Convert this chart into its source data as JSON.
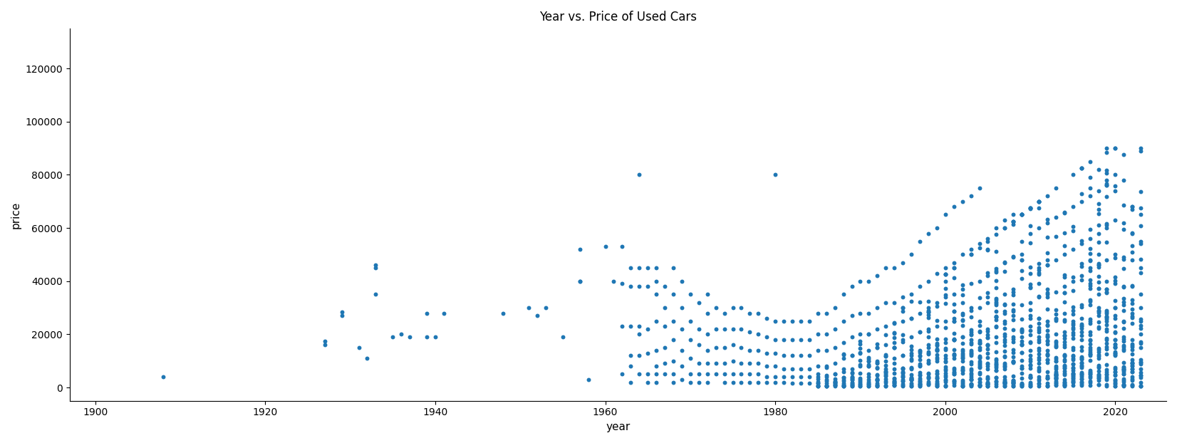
{
  "title": "Year vs. Price of Used Cars",
  "xlabel": "year",
  "ylabel": "price",
  "dot_color": "#1f77b4",
  "dot_size": 18,
  "dot_alpha": 1.0,
  "xlim": [
    1897,
    2026
  ],
  "ylim": [
    -5000,
    135000
  ],
  "points": [
    [
      1908,
      4000
    ],
    [
      1927,
      16000
    ],
    [
      1927,
      17500
    ],
    [
      1929,
      27000
    ],
    [
      1929,
      28500
    ],
    [
      1931,
      15000
    ],
    [
      1932,
      11000
    ],
    [
      1933,
      35000
    ],
    [
      1933,
      45000
    ],
    [
      1933,
      46000
    ],
    [
      1935,
      19000
    ],
    [
      1936,
      20000
    ],
    [
      1937,
      19000
    ],
    [
      1939,
      28000
    ],
    [
      1939,
      19000
    ],
    [
      1940,
      19000
    ],
    [
      1941,
      28000
    ],
    [
      1948,
      28000
    ],
    [
      1951,
      30000
    ],
    [
      1952,
      27000
    ],
    [
      1953,
      30000
    ],
    [
      1955,
      19000
    ],
    [
      1957,
      52000
    ],
    [
      1957,
      40000
    ],
    [
      1957,
      40000
    ],
    [
      1958,
      3000
    ],
    [
      1960,
      53000
    ],
    [
      1961,
      40000
    ],
    [
      1962,
      53000
    ],
    [
      1962,
      39000
    ],
    [
      1962,
      23000
    ],
    [
      1962,
      5000
    ],
    [
      1963,
      45000
    ],
    [
      1963,
      38000
    ],
    [
      1963,
      23000
    ],
    [
      1963,
      12000
    ],
    [
      1963,
      8000
    ],
    [
      1963,
      2000
    ],
    [
      1964,
      80000
    ],
    [
      1964,
      45000
    ],
    [
      1964,
      38000
    ],
    [
      1964,
      23000
    ],
    [
      1964,
      20000
    ],
    [
      1964,
      12000
    ],
    [
      1964,
      5000
    ],
    [
      1965,
      45000
    ],
    [
      1965,
      38000
    ],
    [
      1965,
      22000
    ],
    [
      1965,
      13000
    ],
    [
      1965,
      5000
    ],
    [
      1965,
      2000
    ],
    [
      1966,
      45000
    ],
    [
      1966,
      40000
    ],
    [
      1966,
      35000
    ],
    [
      1966,
      25000
    ],
    [
      1966,
      14000
    ],
    [
      1966,
      8000
    ],
    [
      1966,
      5000
    ],
    [
      1966,
      2000
    ],
    [
      1967,
      38000
    ],
    [
      1967,
      30000
    ],
    [
      1967,
      23000
    ],
    [
      1967,
      15000
    ],
    [
      1967,
      9000
    ],
    [
      1967,
      5000
    ],
    [
      1968,
      45000
    ],
    [
      1968,
      35000
    ],
    [
      1968,
      25000
    ],
    [
      1968,
      18000
    ],
    [
      1968,
      10000
    ],
    [
      1968,
      5000
    ],
    [
      1968,
      2000
    ],
    [
      1969,
      40000
    ],
    [
      1969,
      30000
    ],
    [
      1969,
      22000
    ],
    [
      1969,
      14000
    ],
    [
      1969,
      8000
    ],
    [
      1969,
      3000
    ],
    [
      1970,
      35000
    ],
    [
      1970,
      25000
    ],
    [
      1970,
      18000
    ],
    [
      1970,
      11000
    ],
    [
      1970,
      5000
    ],
    [
      1970,
      2000
    ],
    [
      1971,
      32000
    ],
    [
      1971,
      22000
    ],
    [
      1971,
      16000
    ],
    [
      1971,
      9000
    ],
    [
      1971,
      5000
    ],
    [
      1971,
      2000
    ],
    [
      1972,
      35000
    ],
    [
      1972,
      28000
    ],
    [
      1972,
      20000
    ],
    [
      1972,
      14000
    ],
    [
      1972,
      9000
    ],
    [
      1972,
      5000
    ],
    [
      1972,
      2000
    ],
    [
      1973,
      30000
    ],
    [
      1973,
      22000
    ],
    [
      1973,
      15000
    ],
    [
      1973,
      9000
    ],
    [
      1973,
      5000
    ],
    [
      1974,
      28000
    ],
    [
      1974,
      22000
    ],
    [
      1974,
      15000
    ],
    [
      1974,
      9000
    ],
    [
      1974,
      5000
    ],
    [
      1974,
      2000
    ],
    [
      1975,
      30000
    ],
    [
      1975,
      22000
    ],
    [
      1975,
      16000
    ],
    [
      1975,
      10000
    ],
    [
      1975,
      5000
    ],
    [
      1975,
      2000
    ],
    [
      1976,
      30000
    ],
    [
      1976,
      22000
    ],
    [
      1976,
      15000
    ],
    [
      1976,
      9000
    ],
    [
      1976,
      5000
    ],
    [
      1976,
      2000
    ],
    [
      1977,
      28000
    ],
    [
      1977,
      21000
    ],
    [
      1977,
      14000
    ],
    [
      1977,
      9000
    ],
    [
      1977,
      5000
    ],
    [
      1977,
      2000
    ],
    [
      1978,
      28000
    ],
    [
      1978,
      20000
    ],
    [
      1978,
      14000
    ],
    [
      1978,
      9000
    ],
    [
      1978,
      5000
    ],
    [
      1978,
      2000
    ],
    [
      1979,
      26000
    ],
    [
      1979,
      19000
    ],
    [
      1979,
      13000
    ],
    [
      1979,
      8000
    ],
    [
      1979,
      4000
    ],
    [
      1979,
      2000
    ],
    [
      1980,
      80000
    ],
    [
      1980,
      25000
    ],
    [
      1980,
      18000
    ],
    [
      1980,
      13000
    ],
    [
      1980,
      8000
    ],
    [
      1980,
      4000
    ],
    [
      1980,
      2000
    ],
    [
      1981,
      25000
    ],
    [
      1981,
      18000
    ],
    [
      1981,
      12000
    ],
    [
      1981,
      7000
    ],
    [
      1981,
      4000
    ],
    [
      1981,
      2000
    ],
    [
      1982,
      25000
    ],
    [
      1982,
      18000
    ],
    [
      1982,
      12000
    ],
    [
      1982,
      7000
    ],
    [
      1982,
      4000
    ],
    [
      1982,
      1500
    ],
    [
      1983,
      25000
    ],
    [
      1983,
      18000
    ],
    [
      1983,
      12000
    ],
    [
      1983,
      7000
    ],
    [
      1983,
      4000
    ],
    [
      1983,
      1500
    ],
    [
      1984,
      25000
    ],
    [
      1984,
      18000
    ],
    [
      1984,
      12000
    ],
    [
      1984,
      7000
    ],
    [
      1984,
      4000
    ],
    [
      1984,
      1500
    ],
    [
      1985,
      28000
    ],
    [
      1985,
      20000
    ],
    [
      1985,
      14000
    ],
    [
      1985,
      8000
    ],
    [
      1985,
      4000
    ],
    [
      1985,
      1500
    ],
    [
      1986,
      28000
    ],
    [
      1986,
      20000
    ],
    [
      1986,
      14000
    ],
    [
      1986,
      8000
    ],
    [
      1986,
      4000
    ],
    [
      1986,
      1500
    ],
    [
      1987,
      30000
    ],
    [
      1987,
      22000
    ],
    [
      1987,
      15000
    ],
    [
      1987,
      9000
    ],
    [
      1987,
      5000
    ],
    [
      1987,
      2000
    ],
    [
      1988,
      35000
    ],
    [
      1988,
      25000
    ],
    [
      1988,
      17000
    ],
    [
      1988,
      11000
    ],
    [
      1988,
      6000
    ],
    [
      1988,
      2500
    ],
    [
      1988,
      1000
    ],
    [
      1989,
      38000
    ],
    [
      1989,
      27000
    ],
    [
      1989,
      19000
    ],
    [
      1989,
      12000
    ],
    [
      1989,
      7000
    ],
    [
      1989,
      3000
    ],
    [
      1989,
      1000
    ],
    [
      1990,
      40000
    ],
    [
      1990,
      28000
    ],
    [
      1990,
      20000
    ],
    [
      1990,
      13000
    ],
    [
      1990,
      8000
    ],
    [
      1990,
      3500
    ],
    [
      1990,
      1200
    ],
    [
      1991,
      40000
    ],
    [
      1991,
      28000
    ],
    [
      1991,
      20000
    ],
    [
      1991,
      14000
    ],
    [
      1991,
      8000
    ],
    [
      1991,
      4000
    ],
    [
      1991,
      1500
    ],
    [
      1992,
      42000
    ],
    [
      1992,
      30000
    ],
    [
      1992,
      22000
    ],
    [
      1992,
      15000
    ],
    [
      1992,
      9000
    ],
    [
      1992,
      4500
    ],
    [
      1992,
      1500
    ],
    [
      1993,
      45000
    ],
    [
      1993,
      32000
    ],
    [
      1993,
      23000
    ],
    [
      1993,
      16000
    ],
    [
      1993,
      10000
    ],
    [
      1993,
      5000
    ],
    [
      1993,
      1800
    ],
    [
      1994,
      45000
    ],
    [
      1994,
      32000
    ],
    [
      1994,
      24000
    ],
    [
      1994,
      17000
    ],
    [
      1994,
      11000
    ],
    [
      1994,
      5500
    ],
    [
      1994,
      2000
    ],
    [
      1994,
      800
    ],
    [
      1995,
      47000
    ],
    [
      1995,
      34000
    ],
    [
      1995,
      25000
    ],
    [
      1995,
      18000
    ],
    [
      1995,
      12000
    ],
    [
      1995,
      6000
    ],
    [
      1995,
      2500
    ],
    [
      1995,
      900
    ],
    [
      1996,
      50000
    ],
    [
      1996,
      35000
    ],
    [
      1996,
      26000
    ],
    [
      1996,
      19000
    ],
    [
      1996,
      13000
    ],
    [
      1996,
      7000
    ],
    [
      1996,
      3000
    ],
    [
      1996,
      1000
    ],
    [
      1997,
      55000
    ],
    [
      1997,
      38000
    ],
    [
      1997,
      28000
    ],
    [
      1997,
      21000
    ],
    [
      1997,
      14000
    ],
    [
      1997,
      8000
    ],
    [
      1997,
      3500
    ],
    [
      1997,
      1200
    ],
    [
      1998,
      58000
    ],
    [
      1998,
      40000
    ],
    [
      1998,
      30000
    ],
    [
      1998,
      22000
    ],
    [
      1998,
      15000
    ],
    [
      1998,
      9000
    ],
    [
      1998,
      4000
    ],
    [
      1998,
      1500
    ],
    [
      1999,
      60000
    ],
    [
      1999,
      43000
    ],
    [
      1999,
      32000
    ],
    [
      1999,
      23000
    ],
    [
      1999,
      16000
    ],
    [
      1999,
      10000
    ],
    [
      1999,
      5000
    ],
    [
      1999,
      2000
    ],
    [
      1999,
      800
    ],
    [
      2000,
      65000
    ],
    [
      2000,
      45000
    ],
    [
      2000,
      34000
    ],
    [
      2000,
      25000
    ],
    [
      2000,
      17000
    ],
    [
      2000,
      11000
    ],
    [
      2000,
      5500
    ],
    [
      2000,
      2200
    ],
    [
      2000,
      800
    ],
    [
      2001,
      68000
    ],
    [
      2001,
      47000
    ],
    [
      2001,
      35000
    ],
    [
      2001,
      26000
    ],
    [
      2001,
      18000
    ],
    [
      2001,
      12000
    ],
    [
      2001,
      6000
    ],
    [
      2001,
      2500
    ],
    [
      2001,
      900
    ],
    [
      2002,
      70000
    ],
    [
      2002,
      50000
    ],
    [
      2002,
      37000
    ],
    [
      2002,
      28000
    ],
    [
      2002,
      19000
    ],
    [
      2002,
      13000
    ],
    [
      2002,
      6500
    ],
    [
      2002,
      2800
    ],
    [
      2002,
      1000
    ],
    [
      2003,
      72000
    ],
    [
      2003,
      52000
    ],
    [
      2003,
      39000
    ],
    [
      2003,
      29000
    ],
    [
      2003,
      20000
    ],
    [
      2003,
      14000
    ],
    [
      2003,
      7000
    ],
    [
      2003,
      3000
    ],
    [
      2003,
      1100
    ],
    [
      2004,
      75000
    ],
    [
      2004,
      54000
    ],
    [
      2004,
      40000
    ],
    [
      2004,
      30000
    ],
    [
      2004,
      21000
    ],
    [
      2004,
      15000
    ],
    [
      2004,
      7500
    ],
    [
      2004,
      3200
    ],
    [
      2004,
      1200
    ],
    [
      2005,
      56000
    ],
    [
      2005,
      42000
    ],
    [
      2005,
      32000
    ],
    [
      2005,
      22000
    ],
    [
      2005,
      16000
    ],
    [
      2005,
      8000
    ],
    [
      2005,
      3500
    ],
    [
      2005,
      1300
    ],
    [
      2006,
      60000
    ],
    [
      2006,
      44000
    ],
    [
      2006,
      33000
    ],
    [
      2006,
      23000
    ],
    [
      2006,
      17000
    ],
    [
      2006,
      8500
    ],
    [
      2006,
      3800
    ],
    [
      2006,
      1400
    ],
    [
      2006,
      500
    ],
    [
      2007,
      63000
    ],
    [
      2007,
      47000
    ],
    [
      2007,
      35000
    ],
    [
      2007,
      25000
    ],
    [
      2007,
      18000
    ],
    [
      2007,
      9000
    ],
    [
      2007,
      4000
    ],
    [
      2007,
      1500
    ],
    [
      2007,
      600
    ],
    [
      2008,
      65000
    ],
    [
      2008,
      49000
    ],
    [
      2008,
      37000
    ],
    [
      2008,
      27000
    ],
    [
      2008,
      19000
    ],
    [
      2008,
      9500
    ],
    [
      2008,
      4200
    ],
    [
      2008,
      1600
    ],
    [
      2008,
      600
    ],
    [
      2009,
      55000
    ],
    [
      2009,
      41000
    ],
    [
      2009,
      31000
    ],
    [
      2009,
      22000
    ],
    [
      2009,
      16000
    ],
    [
      2009,
      8000
    ],
    [
      2009,
      3500
    ],
    [
      2009,
      1300
    ],
    [
      2009,
      500
    ],
    [
      2010,
      58000
    ],
    [
      2010,
      43000
    ],
    [
      2010,
      32000
    ],
    [
      2010,
      23000
    ],
    [
      2010,
      17000
    ],
    [
      2010,
      8500
    ],
    [
      2010,
      3800
    ],
    [
      2010,
      1400
    ],
    [
      2010,
      500
    ],
    [
      2011,
      60000
    ],
    [
      2011,
      45000
    ],
    [
      2011,
      34000
    ],
    [
      2011,
      24000
    ],
    [
      2011,
      18000
    ],
    [
      2011,
      9000
    ],
    [
      2011,
      4000
    ],
    [
      2011,
      1500
    ],
    [
      2011,
      600
    ],
    [
      2012,
      62000
    ],
    [
      2012,
      46000
    ],
    [
      2012,
      35000
    ],
    [
      2012,
      25000
    ],
    [
      2012,
      19000
    ],
    [
      2012,
      9500
    ],
    [
      2012,
      4200
    ],
    [
      2012,
      1600
    ],
    [
      2012,
      600
    ],
    [
      2013,
      64000
    ],
    [
      2013,
      48000
    ],
    [
      2013,
      36000
    ],
    [
      2013,
      26000
    ],
    [
      2013,
      20000
    ],
    [
      2013,
      10000
    ],
    [
      2013,
      4500
    ],
    [
      2013,
      1700
    ],
    [
      2013,
      700
    ],
    [
      2014,
      66000
    ],
    [
      2014,
      50000
    ],
    [
      2014,
      38000
    ],
    [
      2014,
      28000
    ],
    [
      2014,
      21000
    ],
    [
      2014,
      10500
    ],
    [
      2014,
      4800
    ],
    [
      2014,
      1800
    ],
    [
      2014,
      700
    ],
    [
      2015,
      68000
    ],
    [
      2015,
      52000
    ],
    [
      2015,
      40000
    ],
    [
      2015,
      29000
    ],
    [
      2015,
      22000
    ],
    [
      2015,
      11000
    ],
    [
      2015,
      5000
    ],
    [
      2015,
      2000
    ],
    [
      2015,
      800
    ],
    [
      2016,
      70000
    ],
    [
      2016,
      54000
    ],
    [
      2016,
      42000
    ],
    [
      2016,
      31000
    ],
    [
      2016,
      23000
    ],
    [
      2016,
      11500
    ],
    [
      2016,
      5200
    ],
    [
      2016,
      2100
    ],
    [
      2016,
      800
    ],
    [
      2017,
      72000
    ],
    [
      2017,
      56000
    ],
    [
      2017,
      44000
    ],
    [
      2017,
      33000
    ],
    [
      2017,
      25000
    ],
    [
      2017,
      12500
    ],
    [
      2017,
      5800
    ],
    [
      2017,
      2400
    ],
    [
      2017,
      900
    ],
    [
      2018,
      74000
    ],
    [
      2018,
      58000
    ],
    [
      2018,
      46000
    ],
    [
      2018,
      35000
    ],
    [
      2018,
      27000
    ],
    [
      2018,
      13500
    ],
    [
      2018,
      6200
    ],
    [
      2018,
      2600
    ],
    [
      2018,
      1000
    ],
    [
      2019,
      76000
    ],
    [
      2019,
      60000
    ],
    [
      2019,
      48000
    ],
    [
      2019,
      37000
    ],
    [
      2019,
      29000
    ],
    [
      2019,
      14500
    ],
    [
      2019,
      6800
    ],
    [
      2019,
      2900
    ],
    [
      2019,
      1200
    ],
    [
      2020,
      80000
    ],
    [
      2020,
      63000
    ],
    [
      2020,
      50000
    ],
    [
      2020,
      39000
    ],
    [
      2020,
      30000
    ],
    [
      2020,
      15000
    ],
    [
      2020,
      7000
    ],
    [
      2020,
      3000
    ],
    [
      2020,
      1300
    ],
    [
      2021,
      78000
    ],
    [
      2021,
      62000
    ],
    [
      2021,
      49000
    ],
    [
      2021,
      38000
    ],
    [
      2021,
      29000
    ],
    [
      2021,
      14500
    ],
    [
      2021,
      6800
    ],
    [
      2021,
      2800
    ],
    [
      2021,
      1200
    ],
    [
      2022,
      68000
    ],
    [
      2022,
      58000
    ],
    [
      2022,
      48000
    ],
    [
      2022,
      38000
    ],
    [
      2022,
      28000
    ],
    [
      2022,
      18000
    ],
    [
      2022,
      9000
    ],
    [
      2022,
      4000
    ],
    [
      2022,
      1000
    ],
    [
      2023,
      65000
    ],
    [
      2023,
      55000
    ],
    [
      2023,
      45000
    ],
    [
      2023,
      35000
    ],
    [
      2023,
      25000
    ],
    [
      2023,
      15000
    ],
    [
      2023,
      7000
    ],
    [
      2023,
      2000
    ],
    [
      2023,
      500
    ]
  ]
}
